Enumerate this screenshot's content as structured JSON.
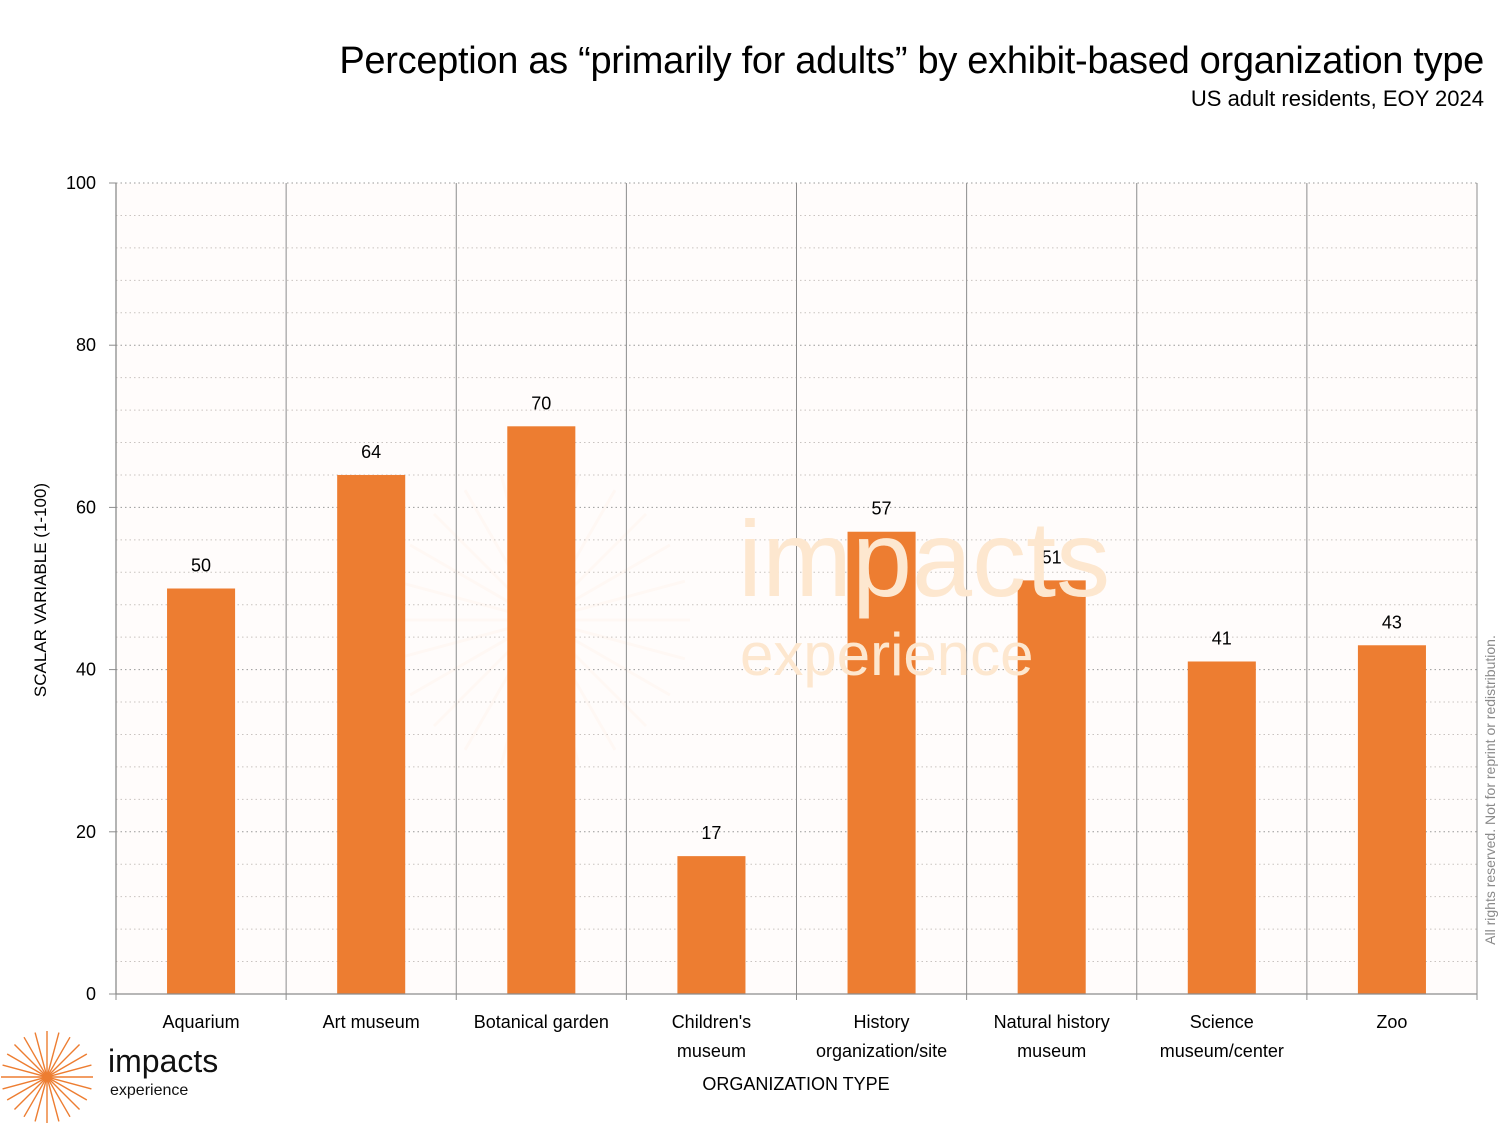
{
  "header": {
    "title": "Perception as “primarily for adults” by exhibit-based organization type",
    "subtitle": "US adult residents, EOY 2024"
  },
  "branding": {
    "logo_word": "impacts",
    "logo_sub": "experience",
    "watermark_word": "impacts",
    "watermark_sub": "experience",
    "copyright": "All rights reserved. Not for reprint or redistribution.",
    "accent_color": "#ED7D31"
  },
  "chart_data": {
    "type": "bar",
    "title": "Perception as “primarily for adults” by exhibit-based organization type",
    "subtitle": "US adult residents, EOY 2024",
    "xlabel": "ORGANIZATION TYPE",
    "ylabel": "SCALAR VARIABLE (1-100)",
    "ylim": [
      0,
      100
    ],
    "yticks": [
      0,
      20,
      40,
      60,
      80,
      100
    ],
    "minor_grid_step": 4,
    "grid": true,
    "legend": "none",
    "bar_color": "#ED7D31",
    "categories": [
      [
        "Aquarium"
      ],
      [
        "Art museum"
      ],
      [
        "Botanical garden"
      ],
      [
        "Children's",
        "museum"
      ],
      [
        "History",
        "organization/site"
      ],
      [
        "Natural history",
        "museum"
      ],
      [
        "Science",
        "museum/center"
      ],
      [
        "Zoo"
      ]
    ],
    "values": [
      50,
      64,
      70,
      17,
      57,
      51,
      41,
      43
    ]
  }
}
